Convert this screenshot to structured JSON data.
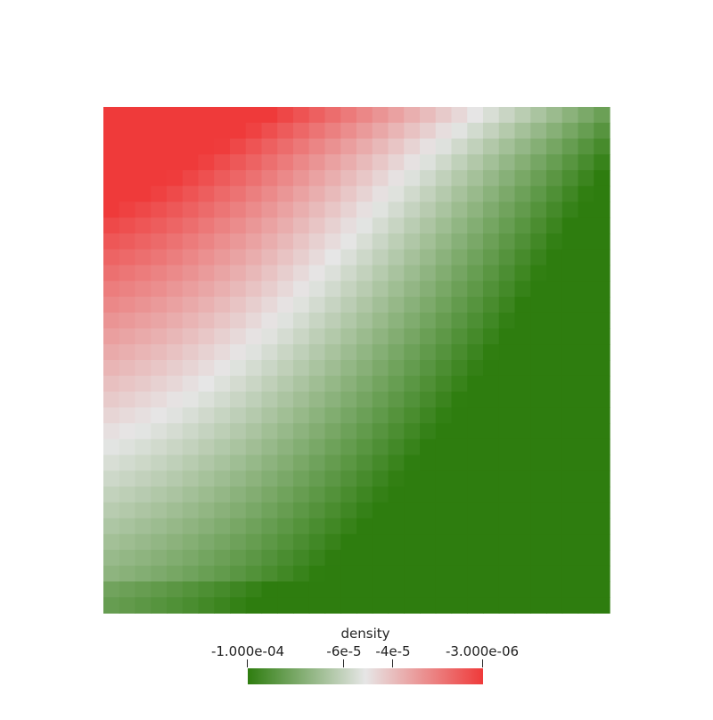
{
  "chart_data": {
    "type": "heatmap",
    "title": "",
    "field": "density",
    "grid_size": [
      32,
      32
    ],
    "value_range": [
      -0.0001,
      -3e-06
    ],
    "colormap": [
      "#2e7d0f",
      "#e6e6e6",
      "#ef3a3a"
    ],
    "colorbar": {
      "title": "density",
      "ticks": [
        {
          "value": -0.0001,
          "label": "-1.000e-04"
        },
        {
          "value": -6e-05,
          "label": "-6e-5"
        },
        {
          "value": -4e-05,
          "label": "-4e-5"
        },
        {
          "value": -3e-06,
          "label": "-3.000e-06"
        }
      ],
      "orientation": "horizontal",
      "placement": "bottom"
    },
    "pattern": "high (red) along top edge and top-left, low (green) over the interior and bottom-right"
  }
}
